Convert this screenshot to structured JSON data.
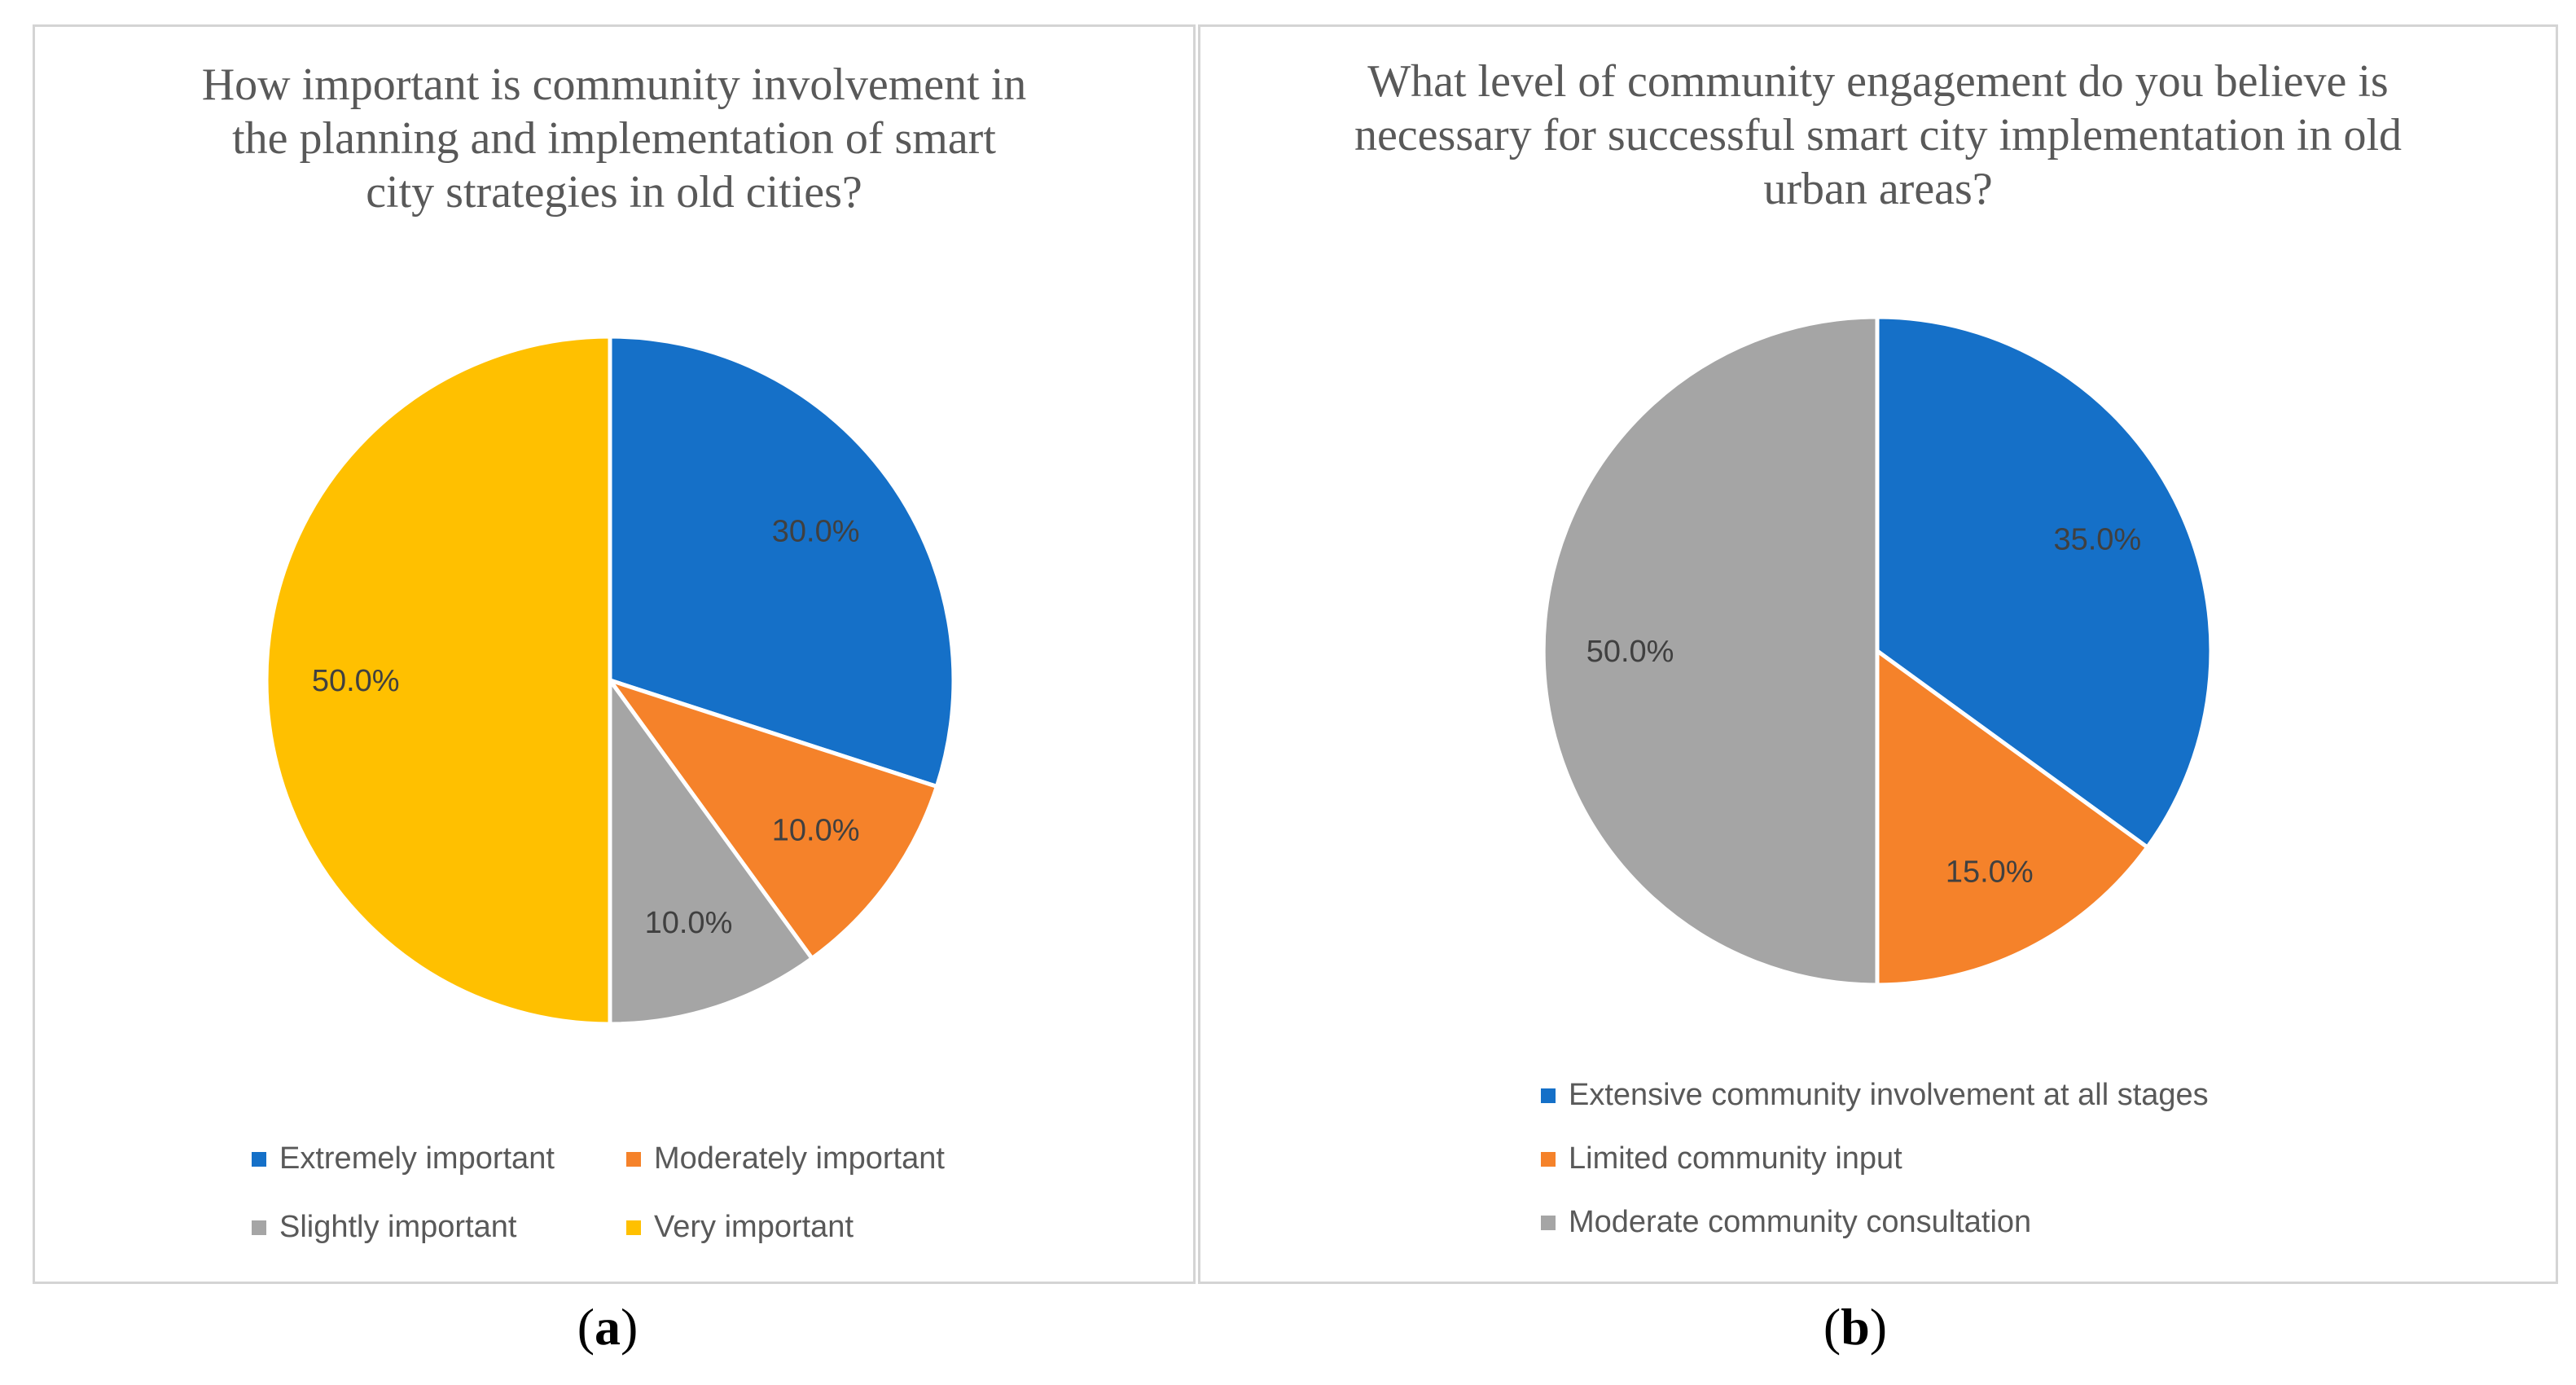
{
  "chart_data": [
    {
      "type": "pie",
      "title": "How important is community involvement in\nthe planning and implementation of smart\ncity strategies in old cities?",
      "categories": [
        "Extremely important",
        "Moderately important",
        "Slightly important",
        "Very important"
      ],
      "values": [
        30.0,
        10.0,
        10.0,
        50.0
      ],
      "value_labels": [
        "30.0%",
        "10.0%",
        "10.0%",
        "50.0%"
      ],
      "colors": [
        "#1570C8",
        "#F5822A",
        "#A5A5A5",
        "#FFC000"
      ],
      "legend_position": "bottom",
      "caption_letter": "a"
    },
    {
      "type": "pie",
      "title": "What level  of community engagement do you believe  is\nnecessary for successful smart city implementation in old\nurban areas?",
      "categories": [
        "Extensive community involvement at all stages",
        "Limited community input",
        "Moderate community consultation"
      ],
      "values": [
        35.0,
        15.0,
        50.0
      ],
      "value_labels": [
        "35.0%",
        "15.0%",
        "50.0%"
      ],
      "colors": [
        "#1570C8",
        "#F5822A",
        "#A5A5A5"
      ],
      "legend_position": "bottom",
      "caption_letter": "b"
    }
  ]
}
